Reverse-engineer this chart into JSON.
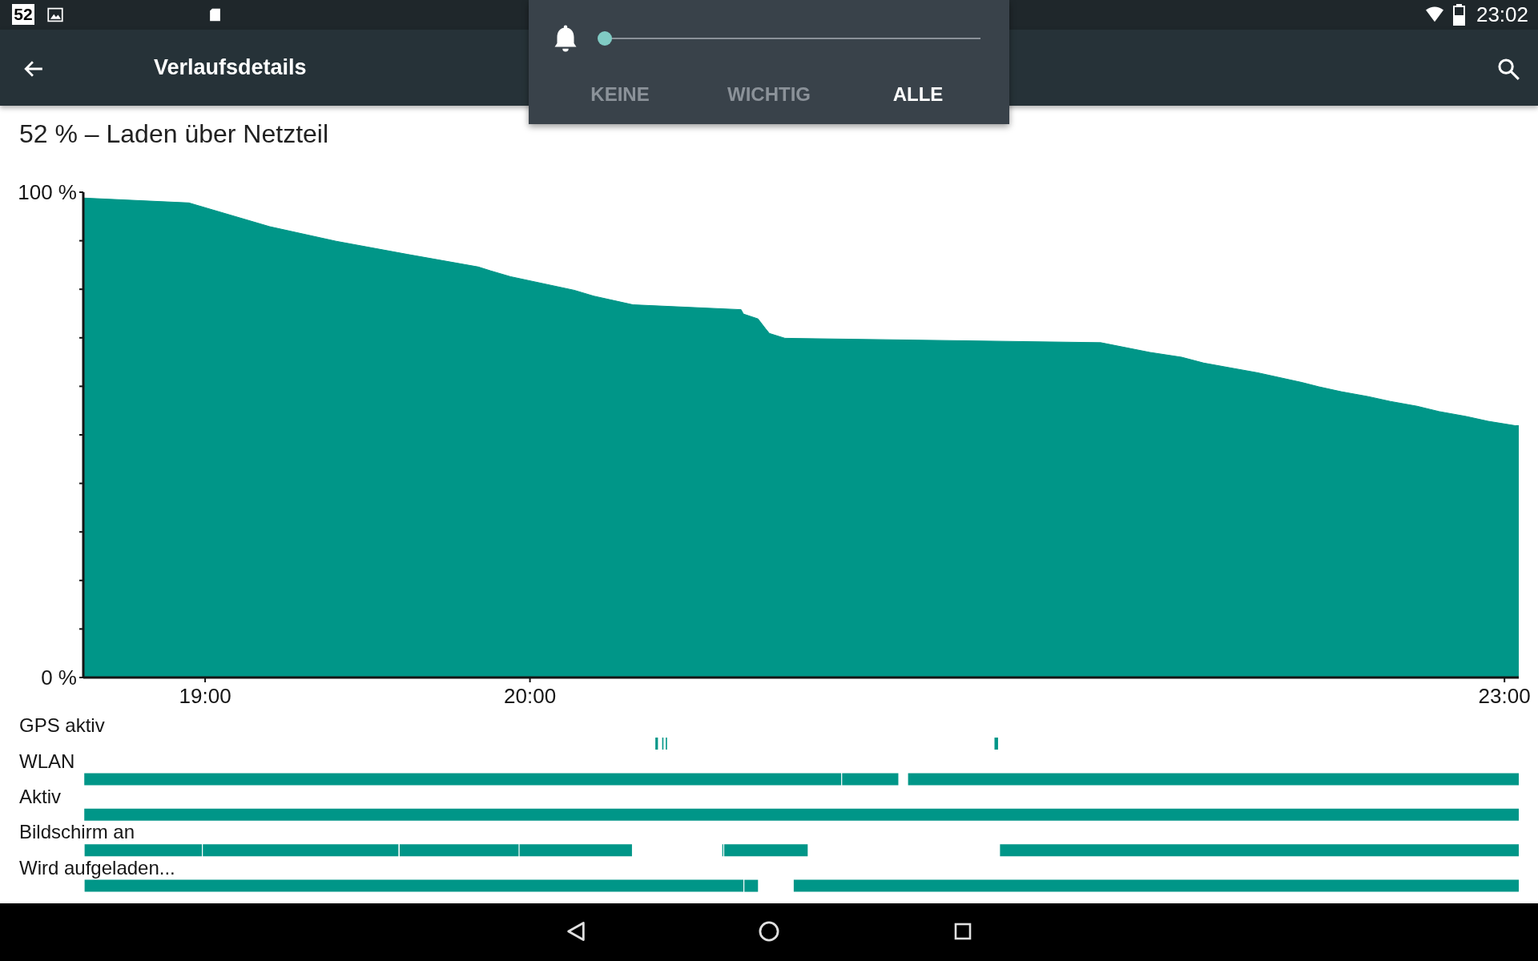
{
  "chart_data": [
    {
      "type": "area",
      "title": "Verlaufsdetails",
      "subtitle": "52 % – Laden über Netzteil",
      "annotations": [
        "52",
        "23:02",
        "KEINE",
        "WICHTIG",
        "ALLE"
      ],
      "x": [
        18.625,
        18.95,
        19.199,
        19.403,
        19.622,
        19.841,
        19.879,
        19.94,
        20.136,
        20.196,
        20.317,
        20.65,
        20.657,
        20.702,
        20.725,
        20.737,
        20.785,
        21.757,
        21.908,
        22.006,
        22.074,
        22.24,
        22.376,
        22.429,
        22.497,
        22.58,
        22.648,
        22.731,
        22.799,
        22.882,
        22.95,
        23.033,
        23.044
      ],
      "values": [
        98.8,
        97.8,
        92.9,
        89.9,
        87.2,
        84.6,
        83.8,
        82.6,
        79.8,
        78.6,
        76.8,
        75.8,
        74.9,
        73.9,
        71.9,
        70.9,
        69.9,
        69.0,
        67.0,
        66.0,
        64.8,
        62.8,
        60.8,
        59.9,
        58.9,
        57.9,
        56.9,
        55.9,
        54.8,
        53.8,
        52.8,
        51.9,
        51.9
      ],
      "color": "#009688",
      "xlim": [
        18.625,
        23.044
      ],
      "ylim": [
        0,
        100
      ],
      "xticks": [
        {
          "value": 19,
          "label": "19:00"
        },
        {
          "value": 20,
          "label": "20:00"
        },
        {
          "value": 23,
          "label": "23:00"
        }
      ],
      "yticks": [
        {
          "value": 0,
          "label": "0 %"
        },
        {
          "value": 10,
          "label": null
        },
        {
          "value": 20,
          "label": null
        },
        {
          "value": 30,
          "label": null
        },
        {
          "value": 40,
          "label": null
        },
        {
          "value": 50,
          "label": null
        },
        {
          "value": 60,
          "label": null
        },
        {
          "value": 70,
          "label": null
        },
        {
          "value": 80,
          "label": null
        },
        {
          "value": 90,
          "label": null
        },
        {
          "value": 100,
          "label": "100 %"
        }
      ]
    },
    {
      "type": "bar",
      "orientation": "horizontal",
      "categories": [
        "GPS aktiv",
        "WLAN",
        "Aktiv",
        "Bildschirm an",
        "Wird aufgeladen..."
      ],
      "series": [
        {
          "color": "#009688",
          "base": [
            20.386,
            18.628,
            18.628,
            18.629,
            18.629
          ],
          "values": [
            0.008,
            2.33,
            4.416,
            0.361,
            2.028
          ]
        },
        {
          "color": "#009688",
          "base": [
            20.407,
            20.961,
            null,
            18.993,
            20.66
          ],
          "values": [
            0.004,
            0.173,
            null,
            0.602,
            0.042
          ]
        },
        {
          "color": "#009688",
          "base": [
            20.418,
            21.164,
            null,
            19.599,
            20.812
          ],
          "values": [
            0.004,
            1.88,
            null,
            0.366,
            2.232
          ]
        },
        {
          "color": "#009688",
          "base": [
            21.43,
            null,
            null,
            19.968,
            null
          ],
          "values": [
            0.011,
            null,
            null,
            0.346,
            null
          ]
        },
        {
          "color": "#009688",
          "base": [
            null,
            null,
            null,
            20.592,
            null
          ],
          "values": [
            null,
            null,
            null,
            0.003,
            null
          ]
        },
        {
          "color": "#009688",
          "base": [
            null,
            null,
            null,
            20.598,
            null
          ],
          "values": [
            null,
            null,
            null,
            0.257,
            null
          ]
        },
        {
          "color": "#009688",
          "base": [
            null,
            null,
            null,
            21.447,
            null
          ],
          "values": [
            null,
            null,
            null,
            1.597,
            null
          ]
        }
      ],
      "xlim": [
        18.625,
        23.044
      ],
      "tick_labels": "y"
    }
  ]
}
